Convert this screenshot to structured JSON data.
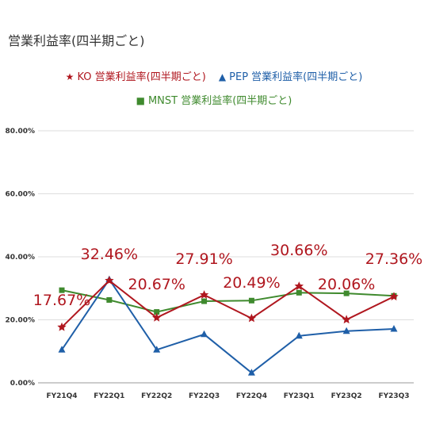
{
  "chart_data": {
    "type": "line",
    "title": "営業利益率(四半期ごと)",
    "categories": [
      "FY21Q4",
      "FY22Q1",
      "FY22Q2",
      "FY22Q3",
      "FY22Q4",
      "FY23Q1",
      "FY23Q2",
      "FY23Q3"
    ],
    "yticks": [
      "0.00%",
      "20.00%",
      "40.00%",
      "60.00%",
      "80.00%"
    ],
    "ylim": [
      0,
      80
    ],
    "grid": true,
    "legend_position": "top",
    "series": [
      {
        "name": "KO 営業利益率(四半期ごと)",
        "color": "#b0171f",
        "marker": "star",
        "values": [
          17.67,
          32.46,
          20.67,
          27.91,
          20.49,
          30.66,
          20.06,
          27.36
        ],
        "labels": [
          "17.67%",
          "32.46%",
          "20.67%",
          "27.91%",
          "20.49%",
          "30.66%",
          "20.06%",
          "27.36%"
        ]
      },
      {
        "name": "PEP 営業利益率(四半期ごと)",
        "color": "#1f5fa8",
        "marker": "triangle",
        "values": [
          10.5,
          32.8,
          10.5,
          15.4,
          3.2,
          14.9,
          16.4,
          17.1
        ]
      },
      {
        "name": "MNST 営業利益率(四半期ごと)",
        "color": "#3f8a2e",
        "marker": "square",
        "values": [
          29.4,
          26.3,
          22.5,
          25.9,
          26.1,
          28.6,
          28.4,
          27.6
        ]
      }
    ]
  }
}
